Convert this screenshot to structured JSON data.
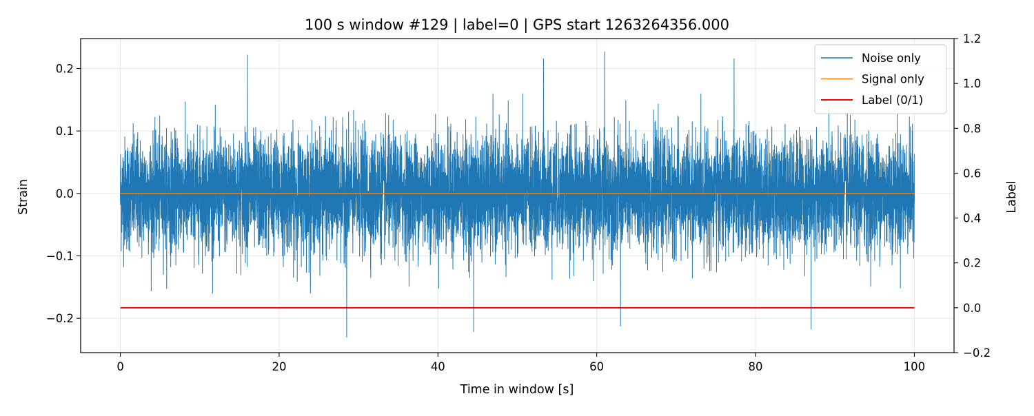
{
  "chart_data": {
    "type": "line",
    "title": "100 s window #129 | label=0 | GPS start 1263264356.000",
    "xlabel": "Time in window [s]",
    "ylabel": "Strain",
    "y2label": "Label",
    "xlim": [
      -5,
      105
    ],
    "ylim": [
      -0.255,
      0.248
    ],
    "y2lim": [
      -0.2,
      1.2
    ],
    "xticks": [
      0,
      20,
      40,
      60,
      80,
      100
    ],
    "xtick_labels": [
      "0",
      "20",
      "40",
      "60",
      "80",
      "100"
    ],
    "yticks": [
      -0.2,
      -0.1,
      0.0,
      0.1,
      0.2
    ],
    "ytick_labels": [
      "−0.2",
      "−0.1",
      "0.0",
      "0.1",
      "0.2"
    ],
    "y2ticks": [
      -0.2,
      0.0,
      0.2,
      0.4,
      0.6,
      0.8,
      1.0,
      1.2
    ],
    "y2tick_labels": [
      "−0.2",
      "0.0",
      "0.2",
      "0.4",
      "0.6",
      "0.8",
      "1.0",
      "1.2"
    ],
    "grid": true,
    "legend_position": "top-right",
    "series": [
      {
        "name": "Noise only",
        "color": "#1f77b4",
        "axis": "left",
        "x_range": [
          0,
          100
        ],
        "amplitude_typical": [
          -0.1,
          0.13
        ],
        "peaks": [
          {
            "x": 16.0,
            "y": 0.222
          },
          {
            "x": 53.3,
            "y": 0.216
          },
          {
            "x": 61.0,
            "y": 0.227
          },
          {
            "x": 77.3,
            "y": 0.216
          },
          {
            "x": 28.5,
            "y": -0.231
          },
          {
            "x": 44.5,
            "y": -0.222
          },
          {
            "x": 87.0,
            "y": -0.218
          },
          {
            "x": 63.0,
            "y": -0.213
          }
        ]
      },
      {
        "name": "Signal only",
        "color": "#ff7f0e",
        "axis": "left",
        "x": [
          0,
          100
        ],
        "y": [
          0.0,
          0.0
        ]
      },
      {
        "name": "Label (0/1)",
        "color": "#ff0000",
        "axis": "right",
        "x": [
          0,
          100
        ],
        "y": [
          0,
          0
        ]
      }
    ]
  }
}
